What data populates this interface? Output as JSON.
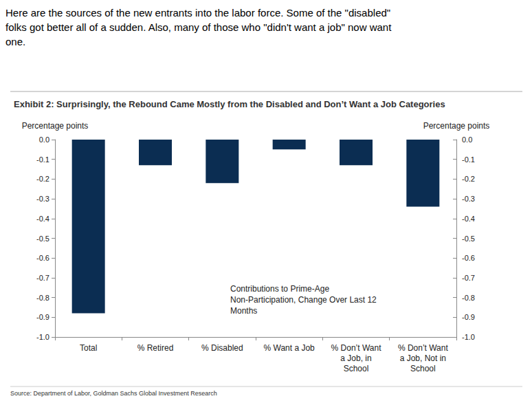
{
  "chart_data": {
    "type": "bar",
    "title": "Exhibit 2: Surprisingly, the Rebound Came Mostly from the Disabled and Don’t Want a Job Categories",
    "ylabel": "Percentage points",
    "y2label": "Percentage points",
    "annotations": [
      "Here are the sources of the new entrants into the labor force. Some of the \"disabled\" folks got better all of a sudden. Also, many of those who \"didn't want a job\" now want one.",
      "Contributions to Prime-Age Non-Participation, Change Over Last 12 Months",
      "Source: Department of Labor, Goldman Sachs Global Investment Research"
    ],
    "categories": [
      "Total",
      "% Retired",
      "% Disabled",
      "% Want a Job",
      "% Don’t Want a Job, in School",
      "% Don’t Want a Job, Not in School"
    ],
    "values": [
      -0.88,
      -0.13,
      -0.22,
      -0.05,
      -0.13,
      -0.34
    ],
    "color": "#0b2d52",
    "ylim": [
      -1.0,
      0.0
    ],
    "yticks": [
      {
        "value": 0,
        "label": "0.0"
      },
      -0.1,
      -0.2,
      -0.3,
      -0.4,
      -0.5,
      -0.6,
      -0.7,
      -0.8,
      -0.9,
      {
        "value": -1,
        "label": "-1.0"
      }
    ],
    "y2lim": [
      -1.0,
      0.0
    ],
    "y2ticks": [
      {
        "value": 0,
        "label": "0.0"
      },
      -0.1,
      -0.2,
      -0.3,
      -0.4,
      -0.5,
      -0.6,
      -0.7,
      -0.8,
      -0.9,
      {
        "value": -1,
        "label": "-1.0"
      }
    ],
    "grid": false
  }
}
